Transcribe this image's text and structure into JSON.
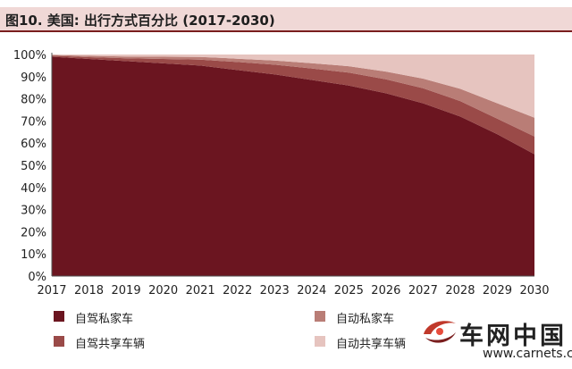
{
  "header": {
    "title": "图10. 美国: 出行方式百分比 (2017-2030)"
  },
  "chart_data": {
    "type": "area",
    "stacked": true,
    "title": "图10. 美国: 出行方式百分比 (2017-2030)",
    "categories": [
      "2017",
      "2018",
      "2019",
      "2020",
      "2021",
      "2022",
      "2023",
      "2024",
      "2025",
      "2026",
      "2027",
      "2028",
      "2029",
      "2030"
    ],
    "y_ticks": [
      "0%",
      "10%",
      "20%",
      "30%",
      "40%",
      "50%",
      "60%",
      "70%",
      "80%",
      "90%",
      "100%"
    ],
    "ylim": [
      0,
      100
    ],
    "grid": false,
    "legend_position": "bottom",
    "series": [
      {
        "name": "自驾私家车",
        "color": "#6b1520",
        "values": [
          99,
          98,
          97,
          96,
          95,
          93,
          91,
          88.5,
          86,
          82.5,
          78,
          72,
          64,
          55
        ]
      },
      {
        "name": "自驾共享车辆",
        "color": "#9a4a48",
        "values": [
          0.5,
          0.8,
          1.3,
          2.0,
          2.7,
          3.6,
          4.4,
          5.2,
          5.8,
          6.3,
          6.8,
          7.0,
          7.0,
          8.0
        ]
      },
      {
        "name": "自动私家车",
        "color": "#b97d76",
        "values": [
          0.3,
          0.6,
          0.8,
          1.0,
          1.2,
          1.5,
          1.9,
          2.4,
          2.9,
          3.5,
          4.3,
          5.5,
          7.0,
          8.5
        ]
      },
      {
        "name": "自动共享车辆",
        "color": "#e6c4bf",
        "values": [
          0.2,
          0.6,
          0.9,
          1.0,
          1.1,
          1.9,
          2.7,
          3.9,
          5.3,
          7.7,
          10.9,
          15.5,
          22.0,
          28.5
        ]
      }
    ]
  },
  "watermark": {
    "name": "车网中国",
    "url": "www.carnets.cn"
  }
}
